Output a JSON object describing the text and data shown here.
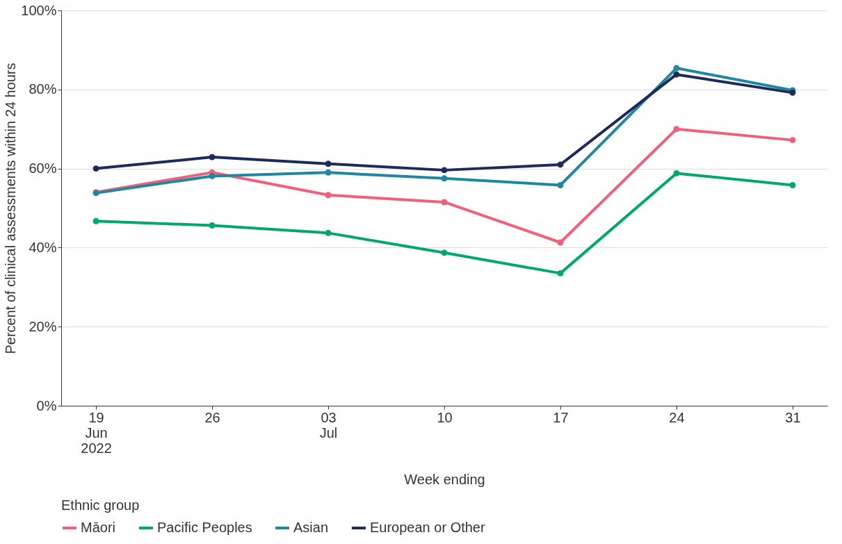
{
  "chart_data": {
    "type": "line",
    "xlabel": "Week ending",
    "ylabel": "Percent of clinical assessments within 24 hours",
    "legend_title": "Ethnic group",
    "categories": [
      "19 Jun 2022",
      "26",
      "03 Jul",
      "10",
      "17",
      "24",
      "31"
    ],
    "series": [
      {
        "name": "Māori",
        "color": "#f0607a",
        "values": [
          54.0,
          59.0,
          53.3,
          51.5,
          41.3,
          70.0,
          67.2
        ]
      },
      {
        "name": "Pacific Peoples",
        "color": "#00a86b",
        "values": [
          46.7,
          45.6,
          43.7,
          38.7,
          33.5,
          58.8,
          55.8
        ]
      },
      {
        "name": "Asian",
        "color": "#1f87a0",
        "values": [
          53.8,
          58.1,
          59.0,
          57.5,
          55.8,
          85.4,
          79.8
        ]
      },
      {
        "name": "European or Other",
        "color": "#1e2a5a",
        "values": [
          60.0,
          62.9,
          61.2,
          59.6,
          61.0,
          83.8,
          79.2
        ]
      }
    ],
    "ylim": [
      0,
      100
    ],
    "yticks": [
      {
        "value": 0,
        "label": "0%"
      },
      {
        "value": 20,
        "label": "20%"
      },
      {
        "value": 40,
        "label": "40%"
      },
      {
        "value": 60,
        "label": "60%"
      },
      {
        "value": 80,
        "label": "80%"
      },
      {
        "value": 100,
        "label": "100%"
      }
    ],
    "grid": "y",
    "legend": "bottom",
    "marker": "circle",
    "line_style": "solid"
  }
}
